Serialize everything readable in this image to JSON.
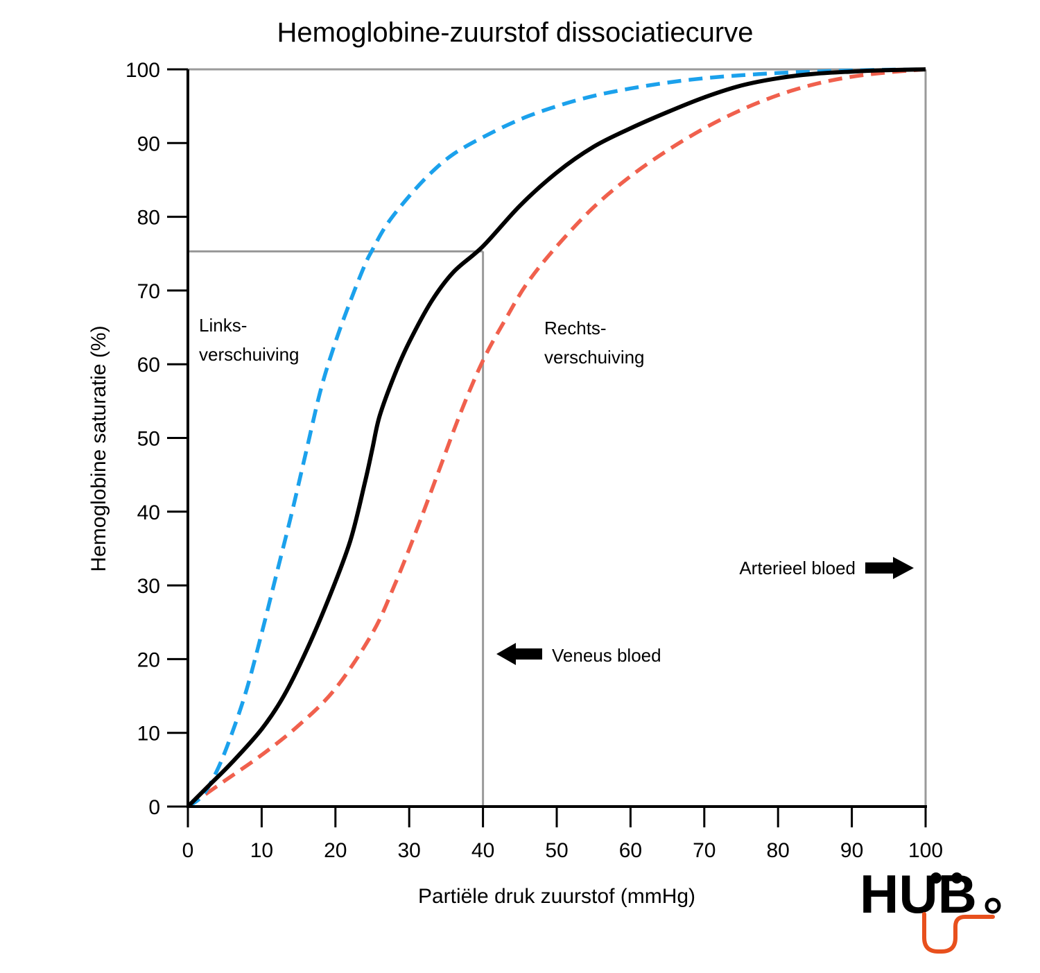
{
  "chart_data": {
    "type": "line",
    "title": "Hemoglobine-zuurstof dissociatiecurve",
    "xlabel": "Partiële druk zuurstof (mmHg)",
    "ylabel": "Hemoglobine saturatie (%)",
    "xlim": [
      0,
      100
    ],
    "ylim": [
      0,
      100
    ],
    "xticks": [
      "0",
      "10",
      "20",
      "30",
      "40",
      "50",
      "60",
      "70",
      "80",
      "90",
      "100"
    ],
    "yticks": [
      "0",
      "10",
      "20",
      "30",
      "40",
      "50",
      "60",
      "70",
      "80",
      "90",
      "100"
    ],
    "grid": false,
    "series": [
      {
        "key": "normal",
        "style": "solid",
        "color": "#000000",
        "x": [
          0,
          3,
          6,
          10,
          13,
          16,
          19,
          22,
          24,
          25,
          26,
          28,
          30,
          33,
          36,
          40,
          45,
          50,
          55,
          60,
          65,
          70,
          75,
          80,
          85,
          90,
          95,
          100
        ],
        "y": [
          0,
          3,
          6,
          10.5,
          15,
          21,
          28,
          36,
          44,
          48.5,
          53,
          58.5,
          63,
          68.5,
          72.5,
          76,
          81.5,
          86,
          89.5,
          92,
          94.2,
          96.2,
          97.8,
          98.8,
          99.4,
          99.7,
          99.9,
          100
        ]
      },
      {
        "key": "left-shift",
        "label": "Links-\nverschuiving",
        "style": "dashed",
        "color": "#1ba1ec",
        "x": [
          0,
          2,
          4,
          6,
          8,
          10,
          12,
          14,
          16,
          18,
          20,
          22,
          24,
          25,
          27,
          30,
          33,
          36,
          40,
          45,
          50,
          55,
          60,
          65,
          70,
          75,
          80,
          85,
          90,
          95,
          100
        ],
        "y": [
          0,
          1.5,
          5,
          10,
          16,
          23.5,
          31.5,
          39.5,
          48,
          56.5,
          63,
          68.5,
          73.5,
          75.5,
          79,
          82.8,
          86,
          88.5,
          90.8,
          93.2,
          95,
          96.4,
          97.4,
          98.2,
          98.8,
          99.2,
          99.5,
          99.7,
          99.85,
          99.95,
          100
        ]
      },
      {
        "key": "right-shift",
        "label": "Rechts-\nverschuiving",
        "style": "dashed",
        "color": "#f0604d",
        "x": [
          0,
          5,
          10,
          15,
          20,
          25,
          28,
          31,
          34,
          37,
          40,
          43,
          46,
          50,
          55,
          60,
          65,
          70,
          75,
          80,
          85,
          90,
          95,
          100
        ],
        "y": [
          0,
          3.5,
          7,
          11,
          16,
          23.5,
          30,
          37.5,
          45.5,
          53.5,
          60.5,
          66,
          71,
          76,
          81.3,
          85.5,
          89,
          92,
          94.5,
          96.5,
          98,
          99,
          99.6,
          100
        ]
      }
    ],
    "reference_lines": [
      {
        "x": 40,
        "y": 75.3
      },
      {
        "x": 100,
        "y": 100
      }
    ],
    "annotations": [
      {
        "key": "veneus",
        "text": "Veneus bloed",
        "arrow": "left",
        "x": 42,
        "y": 20.5
      },
      {
        "key": "arterieel",
        "text": "Arterieel bloed",
        "arrow": "right",
        "x": 98,
        "y": 32.5
      }
    ]
  },
  "logo": {
    "text": "HUB",
    "accent_color": "#e8501d"
  }
}
